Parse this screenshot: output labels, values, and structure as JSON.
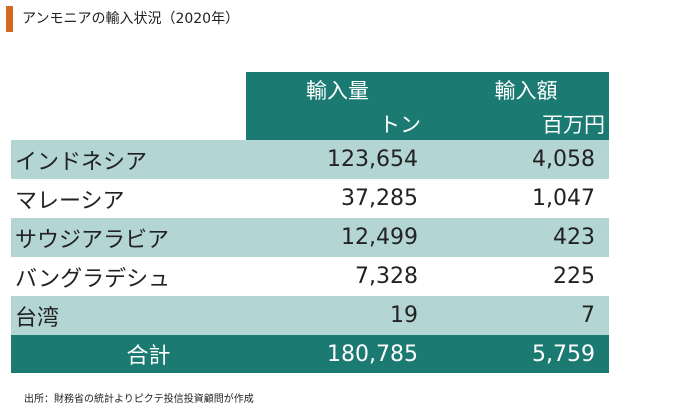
{
  "title": "アンモニアの輸入状況（2020年）",
  "header": {
    "volume_label": "輸入量",
    "amount_label": "輸入額",
    "volume_unit": "トン",
    "amount_unit": "百万円"
  },
  "rows": [
    {
      "country": "インドネシア",
      "volume": "123,654",
      "amount": "4,058"
    },
    {
      "country": "マレーシア",
      "volume": "37,285",
      "amount": "1,047"
    },
    {
      "country": "サウジアラビア",
      "volume": "12,499",
      "amount": "423"
    },
    {
      "country": "バングラデシュ",
      "volume": "7,328",
      "amount": "225"
    },
    {
      "country": "台湾",
      "volume": "19",
      "amount": "7"
    }
  ],
  "total": {
    "label": "合計",
    "volume": "180,785",
    "amount": "5,759"
  },
  "source": "出所：財務省の統計よりピクテ投信投資顧問が作成",
  "colors": {
    "accent": "#d2691e",
    "header_bg": "#1b7a72",
    "row_shade": "#b3d6d5"
  }
}
